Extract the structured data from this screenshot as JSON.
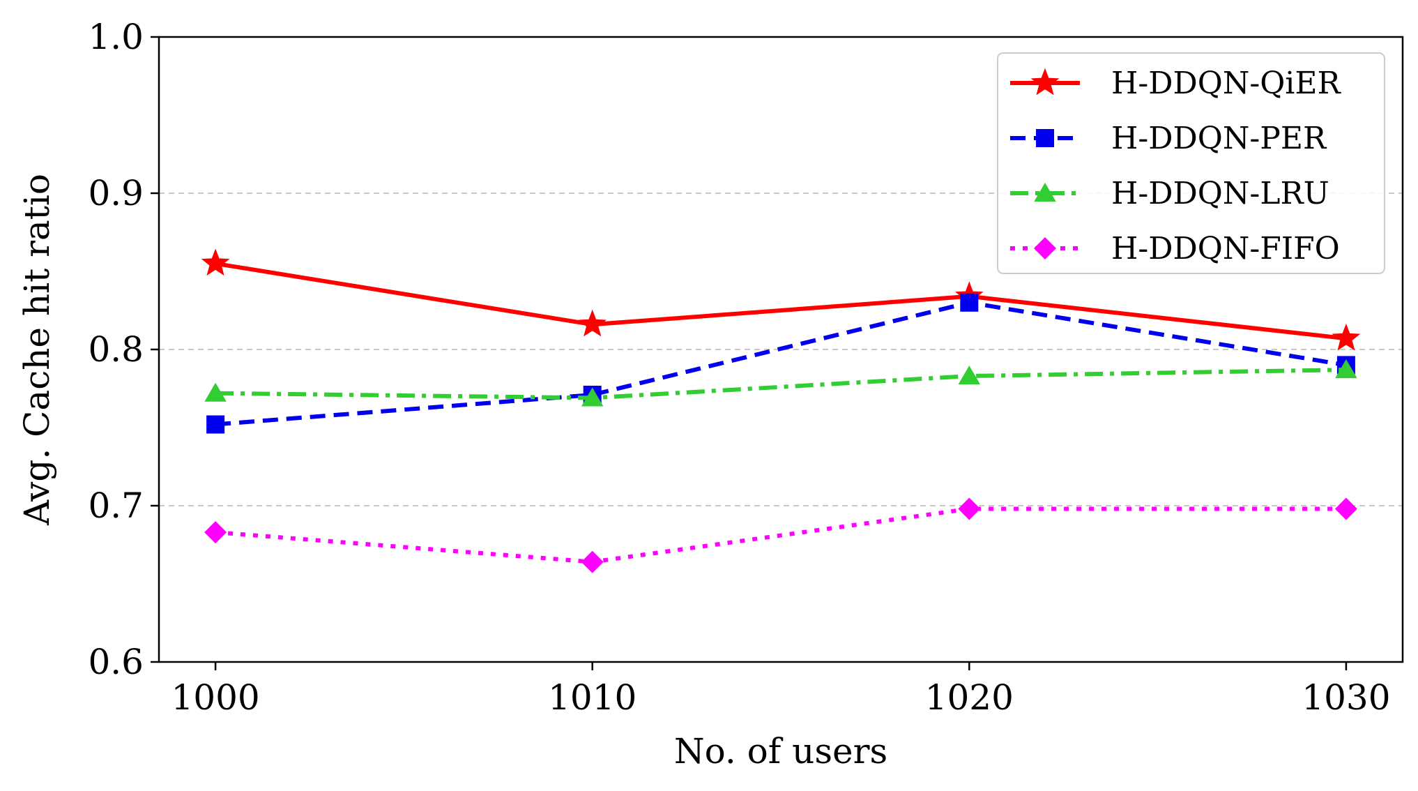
{
  "chart_data": {
    "type": "line",
    "title": "",
    "xlabel": "No. of users",
    "ylabel": "Avg. Cache hit ratio",
    "x": [
      1000,
      1010,
      1020,
      1030
    ],
    "xticks": [
      "1000",
      "1010",
      "1020",
      "1030"
    ],
    "xlim": [
      998.5,
      1031.5
    ],
    "ylim": [
      0.6,
      1.0
    ],
    "yticks": [
      "0.6",
      "0.7",
      "0.8",
      "0.9",
      "1.0"
    ],
    "grid": "horizontal dashed at 0.7, 0.8, 0.9",
    "legend_position": "top-right",
    "series": [
      {
        "name": "H-DDQN-QiER",
        "values": [
          0.855,
          0.816,
          0.834,
          0.807
        ],
        "color": "#ff0000",
        "linestyle": "solid",
        "marker": "star"
      },
      {
        "name": "H-DDQN-PER",
        "values": [
          0.752,
          0.771,
          0.83,
          0.79
        ],
        "color": "#0000ee",
        "linestyle": "dashed",
        "marker": "square"
      },
      {
        "name": "H-DDQN-LRU",
        "values": [
          0.772,
          0.769,
          0.783,
          0.787
        ],
        "color": "#32cd32",
        "linestyle": "dashdot",
        "marker": "triangle"
      },
      {
        "name": "H-DDQN-FIFO",
        "values": [
          0.683,
          0.664,
          0.698,
          0.698
        ],
        "color": "#ff00ff",
        "linestyle": "dotted",
        "marker": "diamond"
      }
    ]
  }
}
